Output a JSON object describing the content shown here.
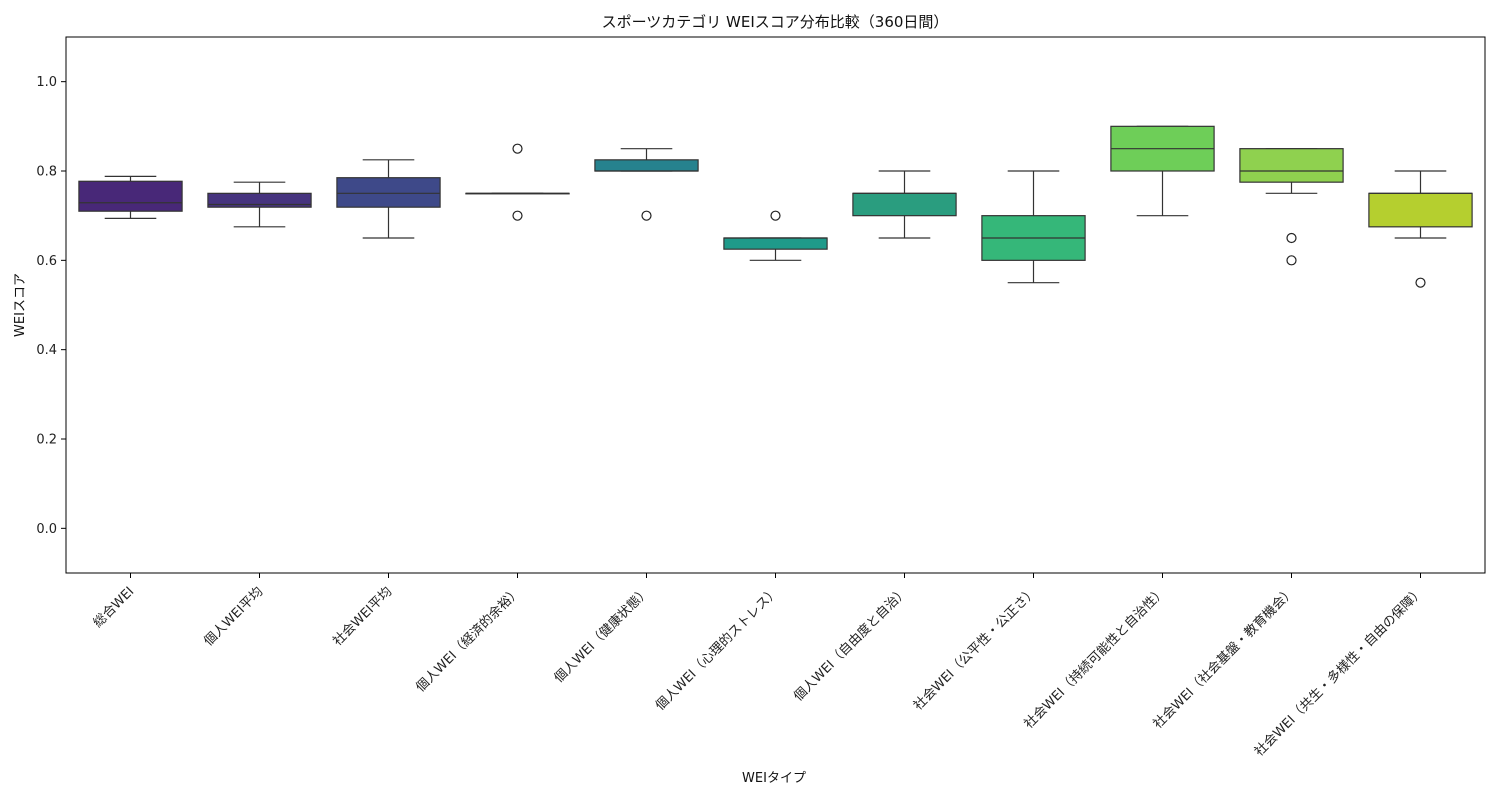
{
  "chart_data": {
    "type": "box",
    "title": "スポーツカテゴリ WEIスコア分布比較（360日間）",
    "xlabel": "WEIタイプ",
    "ylabel": "WEIスコア",
    "ylim": [
      -0.1,
      1.1
    ],
    "yticks": [
      0.0,
      0.2,
      0.4,
      0.6,
      0.8,
      1.0
    ],
    "ytick_labels": [
      "0.0",
      "0.2",
      "0.4",
      "0.6",
      "0.8",
      "1.0"
    ],
    "grid": false,
    "categories": [
      "総合WEI",
      "個人WEI平均",
      "社会WEI平均",
      "個人WEI（経済的余裕）",
      "個人WEI（健康状態）",
      "個人WEI（心理的ストレス）",
      "個人WEI（自由度と自治）",
      "社会WEI（公平性・公正さ）",
      "社会WEI（持続可能性と自治性）",
      "社会WEI（社会基盤・教育機会）",
      "社会WEI（共生・多様性・自由の保障）"
    ],
    "boxes": [
      {
        "whisker_low": 0.694,
        "q1": 0.71,
        "median": 0.729,
        "q3": 0.777,
        "whisker_high": 0.788,
        "outliers": [],
        "color": "#482878"
      },
      {
        "whisker_low": 0.675,
        "q1": 0.719,
        "median": 0.725,
        "q3": 0.75,
        "whisker_high": 0.775,
        "outliers": [],
        "color": "#46337e"
      },
      {
        "whisker_low": 0.65,
        "q1": 0.719,
        "median": 0.75,
        "q3": 0.785,
        "whisker_high": 0.825,
        "outliers": [],
        "color": "#3e4989"
      },
      {
        "whisker_low": 0.75,
        "q1": 0.75,
        "median": 0.75,
        "q3": 0.75,
        "whisker_high": 0.75,
        "outliers": [
          0.7,
          0.85
        ],
        "color": "#31688e"
      },
      {
        "whisker_low": 0.8,
        "q1": 0.8,
        "median": 0.8,
        "q3": 0.825,
        "whisker_high": 0.85,
        "outliers": [
          0.7
        ],
        "color": "#26828e"
      },
      {
        "whisker_low": 0.6,
        "q1": 0.625,
        "median": 0.65,
        "q3": 0.65,
        "whisker_high": 0.65,
        "outliers": [
          0.7
        ],
        "color": "#1f9a8a"
      },
      {
        "whisker_low": 0.65,
        "q1": 0.7,
        "median": 0.75,
        "q3": 0.75,
        "whisker_high": 0.8,
        "outliers": [],
        "color": "#2a9d7f"
      },
      {
        "whisker_low": 0.55,
        "q1": 0.6,
        "median": 0.65,
        "q3": 0.7,
        "whisker_high": 0.8,
        "outliers": [],
        "color": "#35b779"
      },
      {
        "whisker_low": 0.7,
        "q1": 0.8,
        "median": 0.85,
        "q3": 0.9,
        "whisker_high": 0.9,
        "outliers": [],
        "color": "#6ece58"
      },
      {
        "whisker_low": 0.75,
        "q1": 0.775,
        "median": 0.8,
        "q3": 0.85,
        "whisker_high": 0.85,
        "outliers": [
          0.6,
          0.65
        ],
        "color": "#8fd14f"
      },
      {
        "whisker_low": 0.65,
        "q1": 0.675,
        "median": 0.75,
        "q3": 0.75,
        "whisker_high": 0.8,
        "outliers": [
          0.55
        ],
        "color": "#b5cf2f"
      }
    ]
  }
}
